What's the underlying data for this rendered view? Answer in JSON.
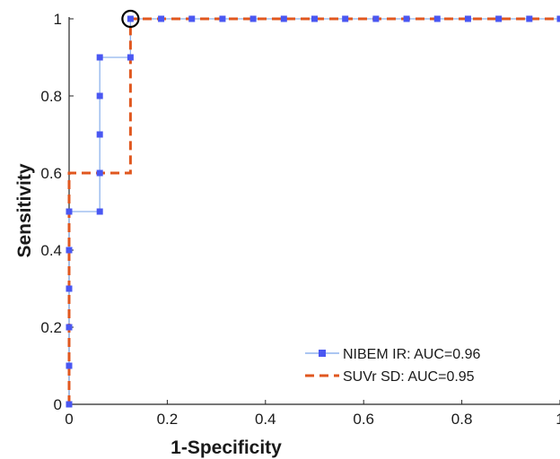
{
  "chart_data": {
    "type": "line",
    "xlabel": "1-Specificity",
    "ylabel": "Sensitivity",
    "xlim": [
      0,
      1
    ],
    "ylim": [
      0,
      1
    ],
    "xticks": [
      "0",
      "0.2",
      "0.4",
      "0.6",
      "0.8",
      "1"
    ],
    "yticks": [
      "0",
      "0.2",
      "0.4",
      "0.6",
      "0.8",
      "1"
    ],
    "grid": false,
    "legend_position": "bottom-right",
    "series": [
      {
        "name": "NIBEM IR: AUC=0.96",
        "color": "#4a57f2",
        "line_color": "#8fb4ee",
        "style": "solid-with-square-markers",
        "x": [
          0,
          0,
          0,
          0,
          0,
          0,
          0.0625,
          0.0625,
          0.0625,
          0.0625,
          0.0625,
          0.125,
          0.125,
          0.1875,
          0.25,
          0.3125,
          0.375,
          0.4375,
          0.5,
          0.5625,
          0.625,
          0.6875,
          0.75,
          0.8125,
          0.875,
          0.9375,
          1
        ],
        "y": [
          0,
          0.1,
          0.2,
          0.3,
          0.4,
          0.5,
          0.5,
          0.6,
          0.7,
          0.8,
          0.9,
          0.9,
          1,
          1,
          1,
          1,
          1,
          1,
          1,
          1,
          1,
          1,
          1,
          1,
          1,
          1,
          1
        ]
      },
      {
        "name": "SUVr SD: AUC=0.95",
        "color": "#e0571f",
        "style": "dashed",
        "x": [
          0,
          0,
          0.125,
          0.125,
          1
        ],
        "y": [
          0,
          0.6,
          0.6,
          1,
          1
        ]
      }
    ],
    "annotations": [
      {
        "type": "circle-marker",
        "x": 0.125,
        "y": 1,
        "meaning": "optimal cutoff"
      }
    ]
  }
}
